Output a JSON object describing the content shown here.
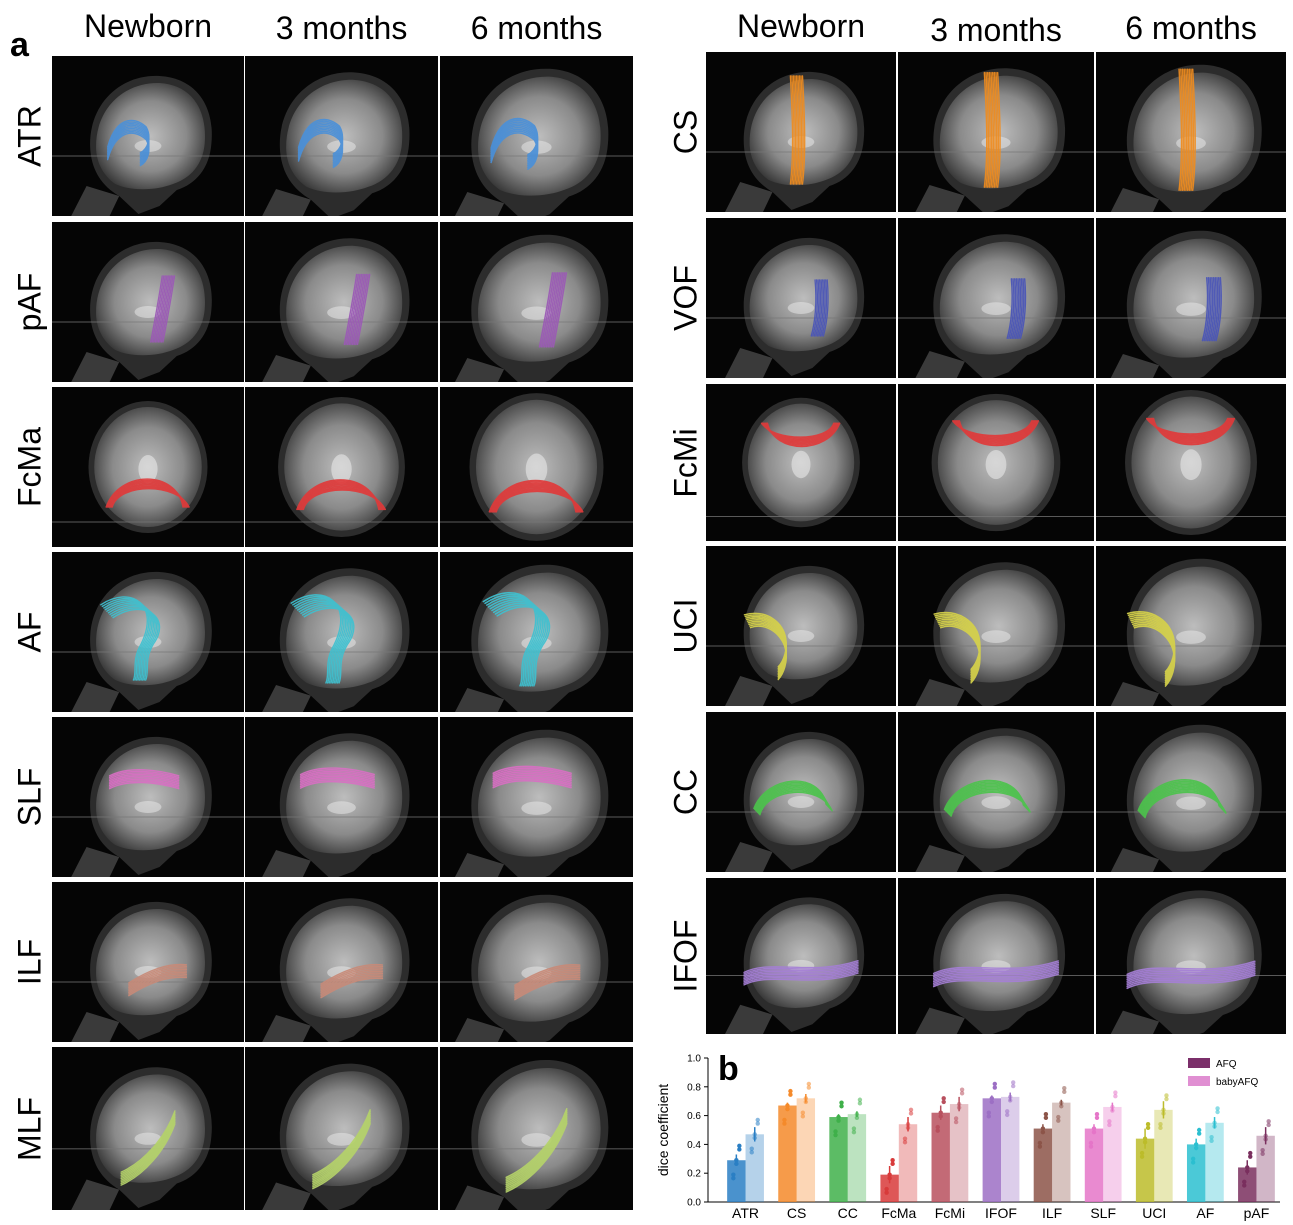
{
  "panel_a": {
    "letter": "a",
    "columns": [
      "Newborn",
      "3 months",
      "6 months"
    ],
    "left_tracts": [
      {
        "label": "ATR",
        "color": "#4a90d9",
        "view": "sagittal",
        "shape": "frontal-blob"
      },
      {
        "label": "pAF",
        "color": "#9b59b6",
        "view": "sagittal",
        "shape": "vertical"
      },
      {
        "label": "FcMa",
        "color": "#e03a3a",
        "view": "axial",
        "shape": "arch-posterior"
      },
      {
        "label": "AF",
        "color": "#3fc1d0",
        "view": "sagittal",
        "shape": "arc"
      },
      {
        "label": "SLF",
        "color": "#d96fc4",
        "view": "sagittal",
        "shape": "horizontal-upper"
      },
      {
        "label": "ILF",
        "color": "#c88a78",
        "view": "sagittal",
        "shape": "horizontal-lower"
      },
      {
        "label": "MLF",
        "color": "#b5d36a",
        "view": "sagittal",
        "shape": "diagonal"
      }
    ],
    "right_tracts": [
      {
        "label": "CS",
        "color": "#f08c1e",
        "view": "sagittal",
        "shape": "vertical-tall"
      },
      {
        "label": "VOF",
        "color": "#4a55b8",
        "view": "sagittal",
        "shape": "vertical-posterior"
      },
      {
        "label": "FcMi",
        "color": "#e03a3a",
        "view": "axial",
        "shape": "arch-anterior"
      },
      {
        "label": "UCI",
        "color": "#d6d24a",
        "view": "sagittal",
        "shape": "hook"
      },
      {
        "label": "CC",
        "color": "#4cc34c",
        "view": "sagittal",
        "shape": "arch-mid"
      },
      {
        "label": "IFOF",
        "color": "#a57fd6",
        "view": "sagittal",
        "shape": "horizontal-long"
      }
    ]
  },
  "panel_b": {
    "letter": "b",
    "chart_data": {
      "type": "bar",
      "ylabel": "dice coefficient",
      "xlabel": "",
      "ylim": [
        0.0,
        1.0
      ],
      "yticks": [
        "0.0",
        "0.2",
        "0.4",
        "0.6",
        "0.8",
        "1.0"
      ],
      "categories": [
        "ATR",
        "CS",
        "CC",
        "FcMa",
        "FcMi",
        "IFOF",
        "ILF",
        "SLF",
        "UCI",
        "AF",
        "pAF"
      ],
      "category_colors": [
        "#2a7fc4",
        "#f58a2a",
        "#3fb04a",
        "#d83a3a",
        "#b8505e",
        "#9c6fc4",
        "#8c5448",
        "#e575c8",
        "#bcbc2a",
        "#2bbfd0",
        "#7a2f5e"
      ],
      "series": [
        {
          "name": "AFQ",
          "values": [
            0.29,
            0.67,
            0.59,
            0.19,
            0.62,
            0.72,
            0.51,
            0.51,
            0.44,
            0.4,
            0.24
          ]
        },
        {
          "name": "babyAFQ",
          "values": [
            0.47,
            0.72,
            0.61,
            0.54,
            0.68,
            0.73,
            0.69,
            0.66,
            0.64,
            0.55,
            0.46
          ]
        }
      ],
      "errors": [
        [
          0.04,
          0.02,
          0.02,
          0.06,
          0.05,
          0.02,
          0.03,
          0.03,
          0.07,
          0.04,
          0.05
        ],
        [
          0.05,
          0.03,
          0.02,
          0.05,
          0.05,
          0.03,
          0.02,
          0.03,
          0.06,
          0.04,
          0.06
        ]
      ],
      "legend": {
        "position": "top-right",
        "entries": [
          {
            "label": "AFQ",
            "color": "#7b2f6a"
          },
          {
            "label": "babyAFQ",
            "color": "#e08fd2"
          }
        ]
      }
    }
  }
}
